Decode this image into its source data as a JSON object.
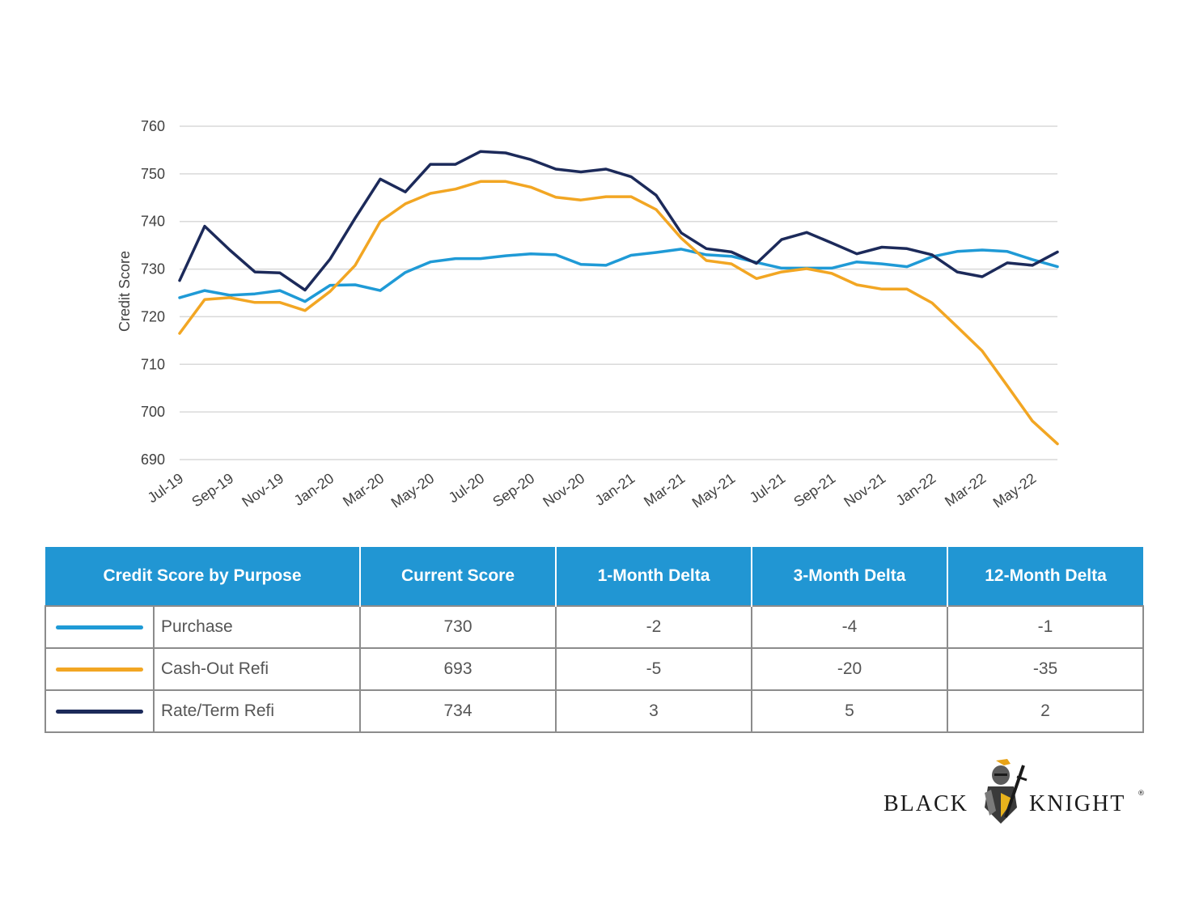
{
  "chart_data": {
    "type": "line",
    "ylabel": "Credit Score",
    "ylim": [
      690,
      760
    ],
    "yticks": [
      760,
      750,
      740,
      730,
      720,
      710,
      700,
      690
    ],
    "grid": true,
    "x": [
      "Jul-19",
      "Aug-19",
      "Sep-19",
      "Oct-19",
      "Nov-19",
      "Dec-19",
      "Jan-20",
      "Feb-20",
      "Mar-20",
      "Apr-20",
      "May-20",
      "Jun-20",
      "Jul-20",
      "Aug-20",
      "Sep-20",
      "Oct-20",
      "Nov-20",
      "Dec-20",
      "Jan-21",
      "Feb-21",
      "Mar-21",
      "Apr-21",
      "May-21",
      "Jun-21",
      "Jul-21",
      "Aug-21",
      "Sep-21",
      "Oct-21",
      "Nov-21",
      "Dec-21",
      "Jan-22",
      "Feb-22",
      "Mar-22",
      "Apr-22",
      "May-22",
      "Jun-22"
    ],
    "xtick_labels": [
      "Jul-19",
      "Sep-19",
      "Nov-19",
      "Jan-20",
      "Mar-20",
      "May-20",
      "Jul-20",
      "Sep-20",
      "Nov-20",
      "Jan-21",
      "Mar-21",
      "May-21",
      "Jul-21",
      "Sep-21",
      "Nov-21",
      "Jan-22",
      "Mar-22",
      "May-22"
    ],
    "series": [
      {
        "name": "Purchase",
        "color": "#1f9ad6",
        "values": [
          724,
          725.5,
          724.5,
          724.8,
          725.5,
          723.2,
          726.6,
          726.7,
          725.5,
          729.3,
          731.5,
          732.2,
          732.2,
          732.8,
          733.2,
          733,
          731,
          730.8,
          732.9,
          733.5,
          734.2,
          733,
          732.7,
          731.4,
          730.2,
          730.2,
          730.2,
          731.5,
          731.1,
          730.5,
          732.6,
          733.7,
          734,
          733.7,
          732,
          730.5
        ]
      },
      {
        "name": "Cash-Out Refi",
        "color": "#f2a623",
        "values": [
          716.5,
          723.6,
          724,
          723,
          723,
          721.3,
          725.3,
          730.8,
          740,
          743.7,
          745.9,
          746.8,
          748.4,
          748.4,
          747.2,
          745.1,
          744.5,
          745.2,
          745.2,
          742.5,
          736.5,
          731.8,
          731.1,
          728,
          729.4,
          730.1,
          729.1,
          726.7,
          725.8,
          725.8,
          722.9,
          717.9,
          712.8,
          705.5,
          698.1,
          693.3
        ]
      },
      {
        "name": "Rate/Term Refi",
        "color": "#1c2a5a",
        "values": [
          727.6,
          739,
          734,
          729.4,
          729.2,
          725.6,
          732.1,
          740.7,
          748.9,
          746.2,
          752,
          752,
          754.7,
          754.4,
          753,
          751,
          750.4,
          751,
          749.4,
          745.5,
          737.6,
          734.3,
          733.6,
          731.2,
          736.2,
          737.7,
          735.5,
          733.2,
          734.6,
          734.3,
          733,
          729.4,
          728.4,
          731.3,
          730.8,
          733.6
        ]
      }
    ]
  },
  "table": {
    "headers": [
      "Credit Score by Purpose",
      "Current Score",
      "1-Month Delta",
      "3-Month Delta",
      "12-Month Delta"
    ],
    "rows": [
      {
        "label": "Purchase",
        "color": "#1f9ad6",
        "current": "730",
        "m1": "-2",
        "m3": "-4",
        "m12": "-1"
      },
      {
        "label": "Cash-Out Refi",
        "color": "#f2a623",
        "current": "693",
        "m1": "-5",
        "m3": "-20",
        "m12": "-35"
      },
      {
        "label": "Rate/Term Refi",
        "color": "#1c2a5a",
        "current": "734",
        "m1": "3",
        "m3": "5",
        "m12": "2"
      }
    ]
  },
  "logo": {
    "left_word": "BLACK",
    "right_word": "KNIGHT",
    "mark": "®"
  }
}
